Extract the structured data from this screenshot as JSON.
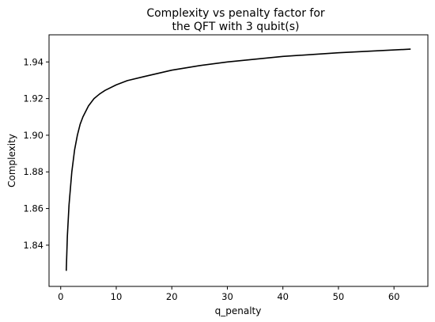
{
  "chart_data": {
    "type": "line",
    "title": [
      "Complexity vs penalty factor for",
      "the QFT with 3 qubit(s)"
    ],
    "xlabel": "q_penalty",
    "ylabel": "Complexity",
    "xlim": [
      -2.1,
      66.1
    ],
    "ylim": [
      1.8175,
      1.9548
    ],
    "x_ticks": [
      0,
      10,
      20,
      30,
      40,
      50,
      60
    ],
    "x_tick_labels": [
      "0",
      "10",
      "20",
      "30",
      "40",
      "50",
      "60"
    ],
    "y_ticks": [
      1.84,
      1.86,
      1.88,
      1.9,
      1.92,
      1.94
    ],
    "y_tick_labels": [
      "1.84",
      "1.86",
      "1.88",
      "1.90",
      "1.92",
      "1.94"
    ],
    "grid": false,
    "legend": "none",
    "series": [
      {
        "color": "#000000",
        "x": [
          1,
          1.2,
          1.5,
          2,
          2.5,
          3,
          3.5,
          4,
          5,
          6,
          7,
          8,
          10,
          12,
          15,
          20,
          25,
          30,
          40,
          50,
          63
        ],
        "y": [
          1.826,
          1.845,
          1.862,
          1.88,
          1.892,
          1.9,
          1.906,
          1.91,
          1.916,
          1.92,
          1.9225,
          1.9245,
          1.9275,
          1.9298,
          1.932,
          1.9355,
          1.938,
          1.94,
          1.943,
          1.945,
          1.947
        ]
      }
    ]
  }
}
